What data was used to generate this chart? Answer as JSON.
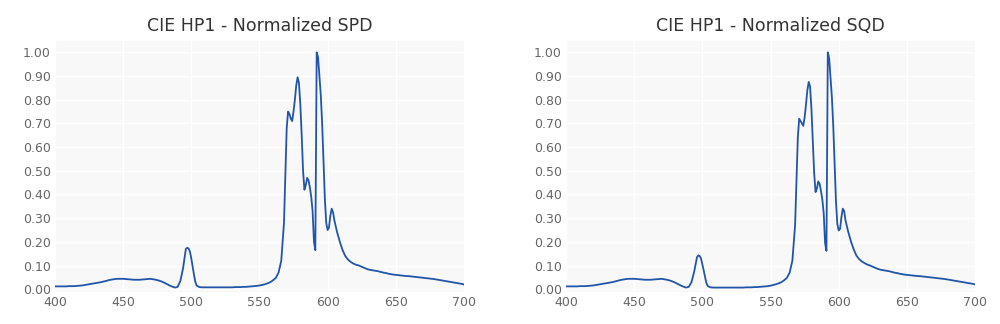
{
  "title_spd": "CIE HP1 - Normalized SPD",
  "title_sqd": "CIE HP1 - Normalized SQD",
  "line_color": "#2255aa",
  "line_width": 1.3,
  "background_color": "#f8f8f8",
  "grid_color": "#ffffff",
  "xlim": [
    400,
    700
  ],
  "ylim": [
    -0.01,
    1.05
  ],
  "yticks": [
    0.0,
    0.1,
    0.2,
    0.3,
    0.4,
    0.5,
    0.6,
    0.7,
    0.8,
    0.9,
    1.0
  ],
  "xticks": [
    400,
    450,
    500,
    550,
    600,
    650,
    700
  ],
  "title_fontsize": 12.5,
  "tick_fontsize": 9,
  "figsize": [
    10.0,
    3.24
  ],
  "dpi": 100,
  "wavelengths_spd": [
    400,
    402,
    404,
    406,
    408,
    410,
    412,
    414,
    416,
    418,
    420,
    422,
    424,
    426,
    428,
    430,
    432,
    434,
    436,
    438,
    440,
    442,
    444,
    446,
    448,
    450,
    452,
    454,
    456,
    458,
    460,
    462,
    464,
    466,
    468,
    470,
    472,
    474,
    476,
    478,
    480,
    482,
    484,
    486,
    488,
    490,
    492,
    494,
    496,
    497,
    498,
    499,
    500,
    501,
    502,
    503,
    504,
    506,
    508,
    510,
    512,
    514,
    516,
    518,
    520,
    522,
    524,
    526,
    528,
    530,
    532,
    534,
    536,
    538,
    540,
    542,
    544,
    546,
    548,
    550,
    552,
    554,
    556,
    558,
    560,
    562,
    564,
    566,
    568,
    569,
    570,
    571,
    572,
    573,
    574,
    575,
    576,
    577,
    578,
    579,
    580,
    581,
    582,
    583,
    584,
    585,
    586,
    587,
    588,
    589,
    590,
    591,
    592,
    593,
    594,
    595,
    596,
    597,
    598,
    599,
    600,
    601,
    602,
    603,
    604,
    605,
    607,
    609,
    611,
    613,
    615,
    617,
    619,
    621,
    623,
    625,
    627,
    629,
    631,
    633,
    635,
    637,
    639,
    641,
    643,
    645,
    648,
    651,
    654,
    657,
    660,
    663,
    666,
    669,
    672,
    675,
    678,
    681,
    684,
    687,
    690,
    693,
    696,
    699,
    700
  ],
  "spd": [
    0.012,
    0.012,
    0.012,
    0.012,
    0.012,
    0.013,
    0.013,
    0.013,
    0.014,
    0.015,
    0.016,
    0.018,
    0.02,
    0.022,
    0.024,
    0.026,
    0.028,
    0.03,
    0.033,
    0.036,
    0.039,
    0.041,
    0.043,
    0.044,
    0.044,
    0.044,
    0.043,
    0.042,
    0.041,
    0.04,
    0.04,
    0.04,
    0.041,
    0.042,
    0.043,
    0.044,
    0.042,
    0.04,
    0.037,
    0.033,
    0.028,
    0.022,
    0.016,
    0.011,
    0.007,
    0.01,
    0.035,
    0.09,
    0.17,
    0.175,
    0.172,
    0.16,
    0.13,
    0.095,
    0.06,
    0.03,
    0.015,
    0.009,
    0.008,
    0.008,
    0.008,
    0.008,
    0.008,
    0.008,
    0.008,
    0.008,
    0.008,
    0.008,
    0.008,
    0.008,
    0.009,
    0.009,
    0.009,
    0.01,
    0.01,
    0.011,
    0.012,
    0.013,
    0.014,
    0.016,
    0.018,
    0.021,
    0.025,
    0.03,
    0.038,
    0.048,
    0.07,
    0.12,
    0.28,
    0.48,
    0.68,
    0.75,
    0.74,
    0.72,
    0.71,
    0.75,
    0.8,
    0.86,
    0.895,
    0.87,
    0.78,
    0.65,
    0.5,
    0.42,
    0.44,
    0.47,
    0.46,
    0.43,
    0.39,
    0.33,
    0.2,
    0.165,
    1.0,
    0.98,
    0.9,
    0.82,
    0.7,
    0.54,
    0.38,
    0.28,
    0.25,
    0.26,
    0.31,
    0.34,
    0.325,
    0.29,
    0.24,
    0.2,
    0.165,
    0.14,
    0.125,
    0.115,
    0.108,
    0.103,
    0.1,
    0.095,
    0.09,
    0.085,
    0.082,
    0.08,
    0.078,
    0.076,
    0.073,
    0.07,
    0.068,
    0.065,
    0.062,
    0.06,
    0.058,
    0.056,
    0.055,
    0.053,
    0.051,
    0.049,
    0.047,
    0.045,
    0.043,
    0.04,
    0.037,
    0.034,
    0.031,
    0.028,
    0.025,
    0.022,
    0.02
  ],
  "sqd": [
    0.012,
    0.012,
    0.012,
    0.012,
    0.012,
    0.013,
    0.013,
    0.013,
    0.014,
    0.015,
    0.016,
    0.018,
    0.02,
    0.022,
    0.024,
    0.026,
    0.028,
    0.03,
    0.033,
    0.036,
    0.039,
    0.041,
    0.043,
    0.044,
    0.044,
    0.044,
    0.043,
    0.042,
    0.041,
    0.04,
    0.04,
    0.04,
    0.041,
    0.042,
    0.043,
    0.044,
    0.042,
    0.04,
    0.037,
    0.033,
    0.028,
    0.022,
    0.016,
    0.011,
    0.007,
    0.01,
    0.03,
    0.075,
    0.135,
    0.143,
    0.14,
    0.13,
    0.105,
    0.078,
    0.05,
    0.025,
    0.013,
    0.008,
    0.007,
    0.007,
    0.007,
    0.007,
    0.007,
    0.007,
    0.007,
    0.007,
    0.007,
    0.007,
    0.007,
    0.007,
    0.008,
    0.008,
    0.008,
    0.009,
    0.009,
    0.01,
    0.011,
    0.012,
    0.013,
    0.015,
    0.018,
    0.021,
    0.025,
    0.03,
    0.038,
    0.048,
    0.07,
    0.12,
    0.27,
    0.46,
    0.64,
    0.72,
    0.71,
    0.7,
    0.69,
    0.725,
    0.78,
    0.84,
    0.875,
    0.855,
    0.76,
    0.63,
    0.49,
    0.41,
    0.425,
    0.455,
    0.445,
    0.415,
    0.378,
    0.32,
    0.195,
    0.162,
    1.0,
    0.975,
    0.895,
    0.81,
    0.69,
    0.53,
    0.37,
    0.275,
    0.248,
    0.255,
    0.305,
    0.34,
    0.33,
    0.29,
    0.242,
    0.202,
    0.168,
    0.142,
    0.127,
    0.117,
    0.11,
    0.104,
    0.1,
    0.095,
    0.09,
    0.085,
    0.082,
    0.08,
    0.078,
    0.076,
    0.073,
    0.07,
    0.068,
    0.065,
    0.062,
    0.06,
    0.058,
    0.056,
    0.055,
    0.053,
    0.051,
    0.049,
    0.047,
    0.045,
    0.043,
    0.04,
    0.037,
    0.034,
    0.031,
    0.028,
    0.025,
    0.022,
    0.02
  ]
}
